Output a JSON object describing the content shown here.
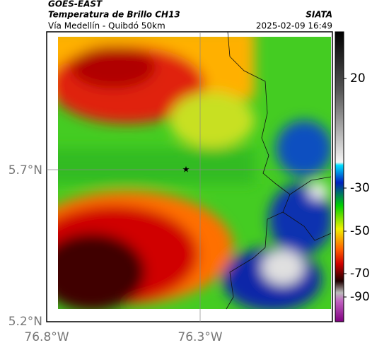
{
  "header": {
    "source": "GOES-EAST",
    "title": "Temperatura de Brillo CH13",
    "brand": "SIATA",
    "subtitle": "Vía Medellín - Quibdó 50km",
    "timestamp": "2025-02-09 16:49"
  },
  "axes": {
    "y_labels": [
      "5.7°N",
      "5.2°N"
    ],
    "x_labels": [
      "76.8°W",
      "76.3°W"
    ]
  },
  "colorbar": {
    "ticks": [
      20,
      -30,
      -50,
      -70,
      -90
    ]
  }
}
